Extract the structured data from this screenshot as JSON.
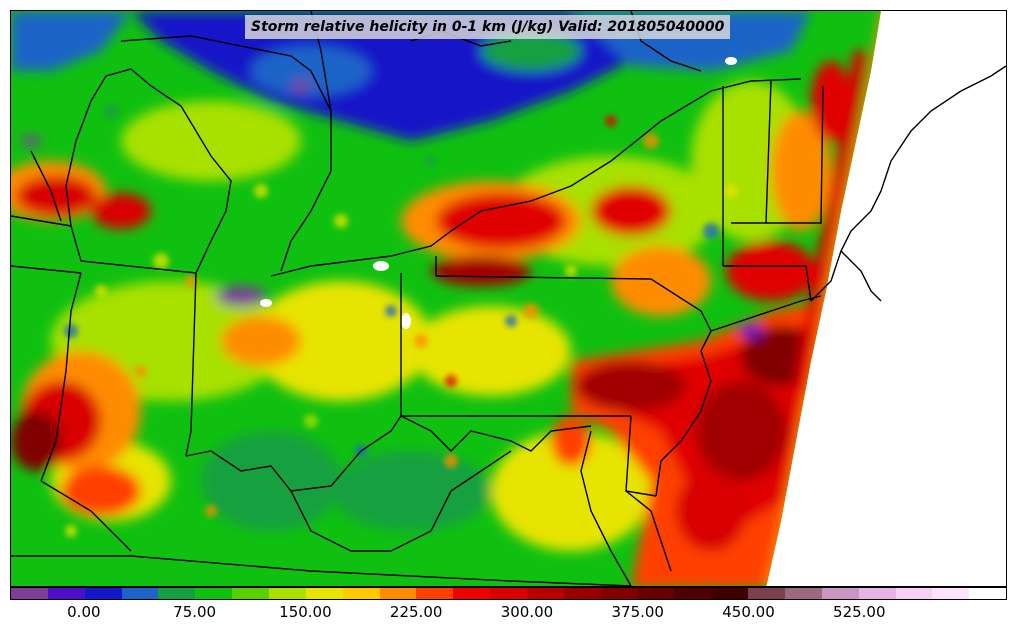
{
  "title": "Storm relative helicity in 0-1 km (J/kg) Valid: 201805040000",
  "colorbar": {
    "colors": [
      "#7b3f98",
      "#4b10c8",
      "#1418c8",
      "#1e64c8",
      "#15a040",
      "#10c010",
      "#58d000",
      "#a8e000",
      "#e6e400",
      "#ffc800",
      "#ff8c00",
      "#ff4000",
      "#f00000",
      "#d80000",
      "#b80000",
      "#980000",
      "#800000",
      "#680000",
      "#500000",
      "#400000",
      "#7a4050",
      "#9c6a80",
      "#c896c0",
      "#e8b4e8",
      "#f6d0f6",
      "#fae4fa",
      "#ffffff"
    ],
    "tick_labels": [
      "0.00",
      "75.00",
      "150.00",
      "225.00",
      "300.00",
      "375.00",
      "450.00",
      "525.00"
    ]
  },
  "map": {
    "field_colors": {
      "purple": "#7b3f98",
      "dark_blue": "#1418c8",
      "blue": "#1e64c8",
      "dark_green": "#15a040",
      "green": "#10c010",
      "lime": "#a8e000",
      "yellow": "#e6e400",
      "orange": "#ff8c00",
      "red": "#f00000",
      "dark_red": "#a00000",
      "maroon": "#600000"
    },
    "boundary_color": "#000000"
  }
}
